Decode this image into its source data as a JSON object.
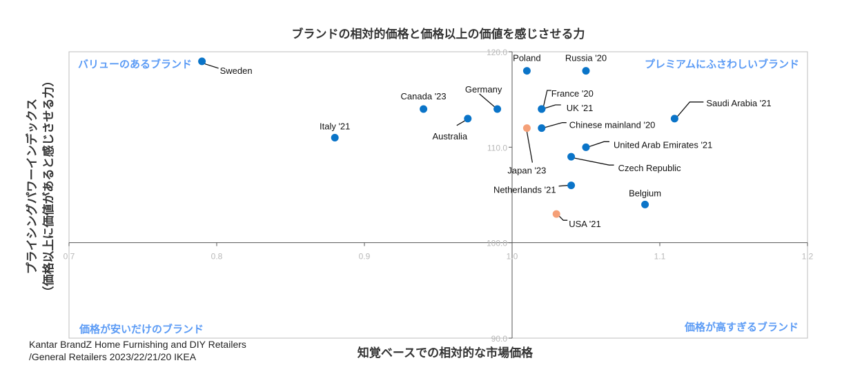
{
  "chart_data": {
    "type": "scatter",
    "title": "ブランドの相対的価格と価格以上の価値を感じさせる力",
    "xlabel": "知覚ベースでの相対的な市場価格",
    "ylabel": [
      "プライシングパワーインデックス",
      "（価格以上に価値があると感じさせる力）"
    ],
    "xlim": [
      0.7,
      1.2
    ],
    "ylim": [
      90,
      120
    ],
    "x_ticks": [
      "0.7",
      "0.8",
      "0.9",
      "1.0",
      "1.1",
      "1.2"
    ],
    "y_ticks": [
      "90.0",
      "100.0",
      "110.0",
      "120.0"
    ],
    "axis_cross": {
      "x": 1.0,
      "y": 100
    },
    "grid": false,
    "colors": {
      "default": "#0a74c8",
      "highlight": "#f5a078",
      "quadrant_text": "#5b9bf5"
    },
    "quadrant_labels": {
      "top_left": "バリューのあるブランド",
      "top_right": "プレミアムにふさわしいブランド",
      "bottom_left": "価格が安いだけのブランド",
      "bottom_right": "価格が高すぎるブランド"
    },
    "points": [
      {
        "label": "Sweden",
        "x": 0.79,
        "y": 119.0,
        "highlight": false
      },
      {
        "label": "Poland",
        "x": 1.01,
        "y": 118.0,
        "highlight": false
      },
      {
        "label": "Russia '20",
        "x": 1.05,
        "y": 118.0,
        "highlight": false
      },
      {
        "label": "Canada '23",
        "x": 0.94,
        "y": 114.0,
        "highlight": false
      },
      {
        "label": "Germany",
        "x": 0.99,
        "y": 114.0,
        "highlight": false
      },
      {
        "label": "Australia",
        "x": 0.97,
        "y": 113.0,
        "highlight": false
      },
      {
        "label": "Italy '21",
        "x": 0.88,
        "y": 111.0,
        "highlight": false
      },
      {
        "label": "France '20",
        "x": 1.02,
        "y": 114.0,
        "highlight": false
      },
      {
        "label": "UK '21",
        "x": 1.02,
        "y": 114.0,
        "highlight": false
      },
      {
        "label": "Chinese mainland '20",
        "x": 1.02,
        "y": 112.0,
        "highlight": false
      },
      {
        "label": "Japan '23",
        "x": 1.01,
        "y": 112.0,
        "highlight": true
      },
      {
        "label": "Saudi Arabia '21",
        "x": 1.11,
        "y": 113.0,
        "highlight": false
      },
      {
        "label": "United Arab Emirates '21",
        "x": 1.05,
        "y": 110.0,
        "highlight": false
      },
      {
        "label": "Czech Republic",
        "x": 1.04,
        "y": 109.0,
        "highlight": false
      },
      {
        "label": "Netherlands '21",
        "x": 1.04,
        "y": 106.0,
        "highlight": false
      },
      {
        "label": "Belgium",
        "x": 1.09,
        "y": 104.0,
        "highlight": false
      },
      {
        "label": "USA '21",
        "x": 1.03,
        "y": 103.0,
        "highlight": true
      }
    ]
  },
  "source": [
    "Kantar BrandZ Home Furnishing and DIY Retailers",
    "/General Retailers 2023/22/21/20 IKEA"
  ]
}
